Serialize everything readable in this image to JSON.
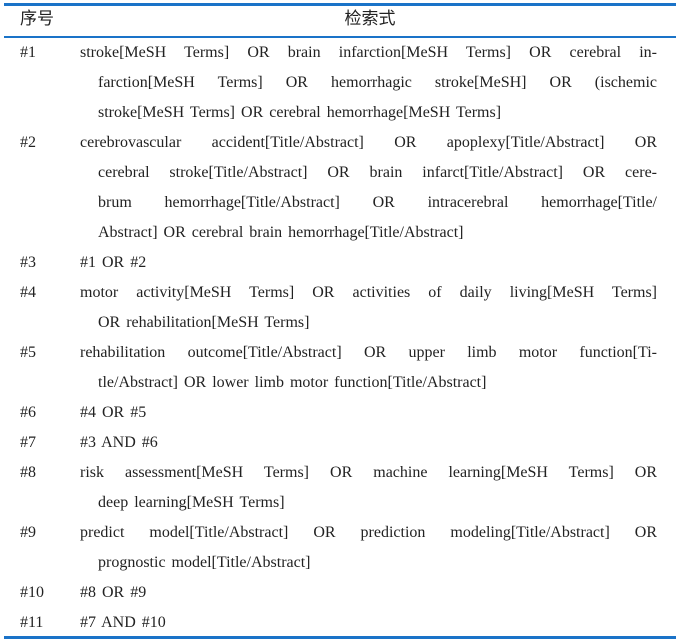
{
  "table": {
    "headers": {
      "num": "序号",
      "query": "检索式"
    },
    "rows": [
      {
        "num": "#1",
        "lines": [
          "stroke[MeSH Terms] OR brain infarction[MeSH Terms] OR cerebral in-",
          "farction[MeSH Terms] OR hemorrhagic stroke[MeSH] OR (ischemic",
          "stroke[MeSH Terms] OR cerebral hemorrhage[MeSH Terms]"
        ]
      },
      {
        "num": "#2",
        "lines": [
          "cerebrovascular accident[Title/Abstract] OR apoplexy[Title/Abstract] OR",
          "cerebral stroke[Title/Abstract] OR brain infarct[Title/Abstract] OR cere-",
          "brum hemorrhage[Title/Abstract] OR intracerebral hemorrhage[Title/",
          "Abstract] OR cerebral brain hemorrhage[Title/Abstract]"
        ]
      },
      {
        "num": "#3",
        "lines": [
          "#1 OR #2"
        ]
      },
      {
        "num": "#4",
        "lines": [
          "motor activity[MeSH Terms] OR activities of daily living[MeSH Terms]",
          "OR rehabilitation[MeSH Terms]"
        ]
      },
      {
        "num": "#5",
        "lines": [
          "rehabilitation outcome[Title/Abstract] OR upper limb motor function[Ti-",
          "tle/Abstract] OR lower limb motor function[Title/Abstract]"
        ]
      },
      {
        "num": "#6",
        "lines": [
          "#4 OR #5"
        ]
      },
      {
        "num": "#7",
        "lines": [
          "#3 AND #6"
        ]
      },
      {
        "num": "#8",
        "lines": [
          "risk assessment[MeSH Terms] OR machine learning[MeSH Terms] OR",
          "deep learning[MeSH Terms]"
        ]
      },
      {
        "num": "#9",
        "lines": [
          "predict model[Title/Abstract] OR prediction modeling[Title/Abstract] OR",
          "prognostic model[Title/Abstract]"
        ]
      },
      {
        "num": "#10",
        "lines": [
          "#8 OR #9"
        ]
      },
      {
        "num": "#11",
        "lines": [
          "#7 AND #10"
        ]
      }
    ]
  },
  "colors": {
    "rule": "#1a73c8",
    "text": "#222222"
  }
}
